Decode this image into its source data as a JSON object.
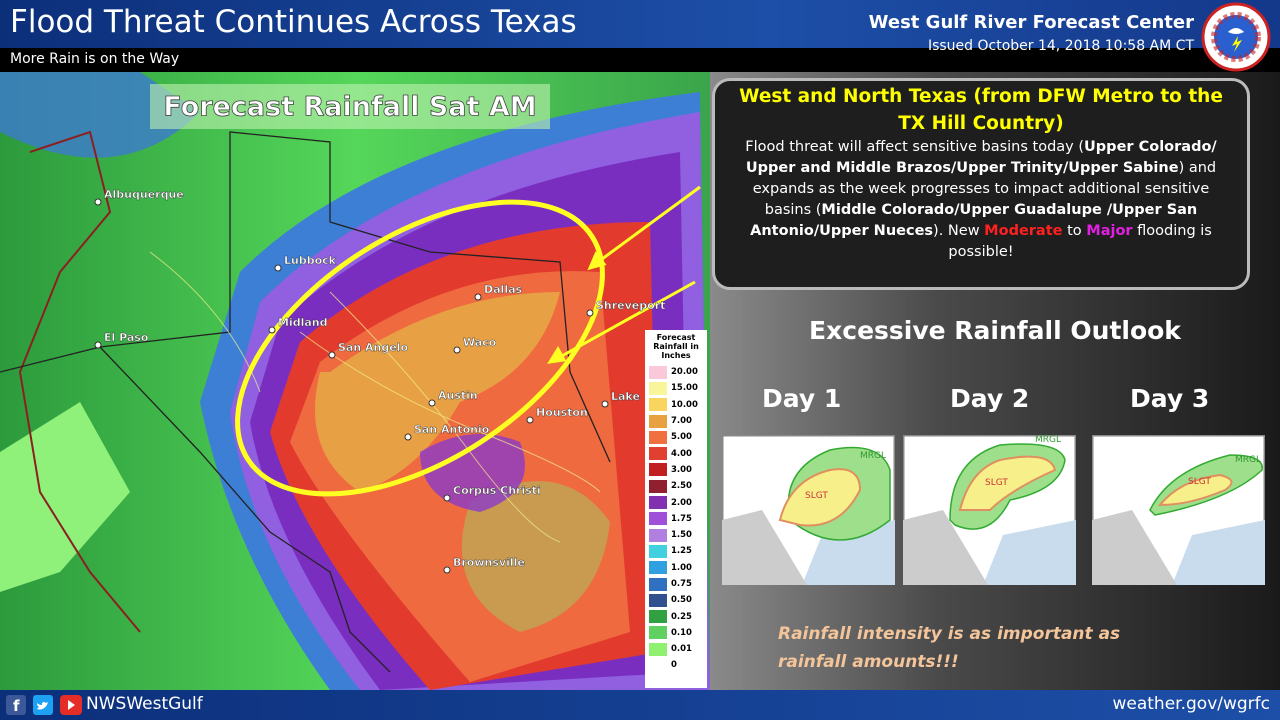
{
  "header": {
    "title": "Flood Threat Continues Across Texas",
    "subtitle": "More Rain is on the Way",
    "center": "West Gulf River Forecast Center",
    "issued": "Issued October 14, 2018 10:58 AM CT"
  },
  "map": {
    "title": "Forecast Rainfall Sat AM",
    "cities": [
      "Albuquerque",
      "Lubbock",
      "El Paso",
      "Midland",
      "San Angelo",
      "Dallas",
      "Waco",
      "Shreveport",
      "Austin",
      "Houston",
      "San Antonio",
      "Lake",
      "Corpus Christi",
      "Brownsville"
    ],
    "legend": {
      "title": [
        "Forecast",
        "Rainfall in",
        "Inches"
      ],
      "items": [
        "20.00",
        "15.00",
        "10.00",
        "7.00",
        "5.00",
        "4.00",
        "3.00",
        "2.50",
        "2.00",
        "1.75",
        "1.50",
        "1.25",
        "1.00",
        "0.75",
        "0.50",
        "0.25",
        "0.10",
        "0.01",
        "0"
      ]
    }
  },
  "callout": {
    "heading": "West and North Texas (from DFW Metro to the TX Hill Country)",
    "body": [
      {
        "text": "Flood threat will affect sensitive basins today (",
        "style": "normal"
      },
      {
        "text": "Upper Colorado/ Upper and Middle Brazos/Upper Trinity/Upper Sabine",
        "style": "bold"
      },
      {
        "text": ") and expands as the week progresses to impact additional sensitive basins (",
        "style": "normal"
      },
      {
        "text": "Middle Colorado/Upper Guadalupe /Upper San Antonio/Upper Nueces",
        "style": "bold"
      },
      {
        "text": "). New ",
        "style": "normal"
      },
      {
        "text": "Moderate",
        "style": "moderate"
      },
      {
        "text": " to ",
        "style": "normal"
      },
      {
        "text": "Major",
        "style": "major"
      },
      {
        "text": " flooding is possible!",
        "style": "normal"
      }
    ]
  },
  "outlook": {
    "title": "Excessive Rainfall Outlook",
    "days": [
      {
        "label": "Day 1",
        "zones": [
          "MRGL",
          "SLGT"
        ]
      },
      {
        "label": "Day 2",
        "zones": [
          "MRGL",
          "SLGT"
        ]
      },
      {
        "label": "Day 3",
        "zones": [
          "MRGL",
          "SLGT"
        ]
      }
    ]
  },
  "note": [
    "Rainfall intensity is as important as",
    "rainfall amounts!!!"
  ],
  "footer": {
    "handle": "NWSWestGulf",
    "url": "weather.gov/wgrfc"
  }
}
